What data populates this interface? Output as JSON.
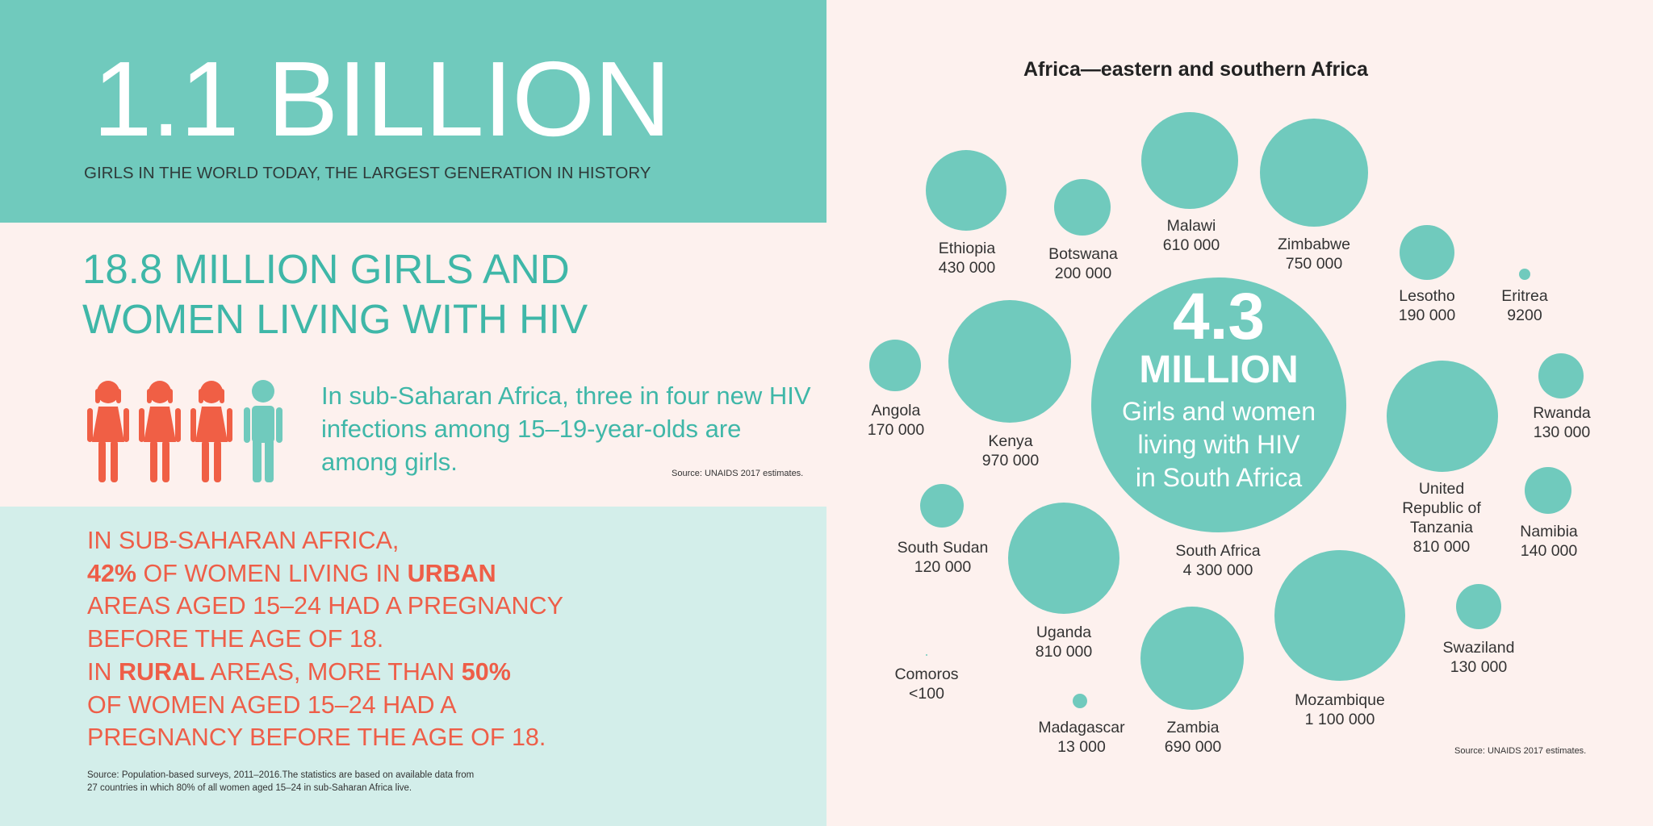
{
  "left": {
    "headline": "1.1 BILLION",
    "headline_sub": "GIRLS IN THE WORLD TODAY, THE LARGEST GENERATION IN HISTORY",
    "mid_heading": [
      "18.8 MILLION GIRLS AND",
      "WOMEN LIVING WITH HIV"
    ],
    "mid_text": "In sub-Saharan Africa, three in four new HIV infections among 15–19-year-olds are among girls.",
    "mid_source": "Source: UNAIDS 2017 estimates.",
    "figures": {
      "female_count": 3,
      "male_count": 1,
      "female_color": "#f05f45",
      "male_color": "#70cabd"
    },
    "bottom": {
      "line1": "IN SUB-SAHARAN AFRICA,",
      "line2_bold": "42%",
      "line2_a": " OF WOMEN LIVING IN ",
      "line2_bold2": "URBAN",
      "line3": "AREAS AGED 15–24 HAD A PREGNANCY",
      "line4": "BEFORE THE AGE OF 18.",
      "line5_a": "IN ",
      "line5_bold": "RURAL",
      "line5_b": " AREAS, MORE THAN ",
      "line5_bold2": "50%",
      "line6": "OF WOMEN AGED 15–24 HAD A",
      "line7": "PREGNANCY BEFORE THE AGE OF 18.",
      "source1": "Source: Population-based surveys, 2011–2016.The statistics are based on available data from",
      "source2": "27 countries in which 80% of all women aged 15–24 in sub-Saharan Africa live."
    },
    "colors": {
      "teal": "#70cabd",
      "teal_text": "#3fb7a8",
      "coral": "#ee5e48",
      "pale_teal": "#d3eeea",
      "cream": "#fdf1ee"
    }
  },
  "right": {
    "title": "Africa—eastern and southern Africa",
    "center": {
      "number": "4.3",
      "unit": "MILLION",
      "desc": [
        "Girls and women",
        "living with HIV",
        "in South Africa"
      ]
    },
    "source": "Source: UNAIDS 2017 estimates.",
    "countries": [
      {
        "name": "Ethiopia",
        "value": "430 000"
      },
      {
        "name": "Botswana",
        "value": "200 000"
      },
      {
        "name": "Malawi",
        "value": "610 000"
      },
      {
        "name": "Zimbabwe",
        "value": "750 000"
      },
      {
        "name": "Lesotho",
        "value": "190 000"
      },
      {
        "name": "Eritrea",
        "value": "9200"
      },
      {
        "name": "Angola",
        "value": "170 000"
      },
      {
        "name": "Kenya",
        "value": "970 000"
      },
      {
        "name": "Rwanda",
        "value": "130 000"
      },
      {
        "name": "United Republic of Tanzania",
        "value": "810 000"
      },
      {
        "name": "Namibia",
        "value": "140 000"
      },
      {
        "name": "South Sudan",
        "value": "120 000"
      },
      {
        "name": "South Africa",
        "value": "4 300 000"
      },
      {
        "name": "Uganda",
        "value": "810 000"
      },
      {
        "name": "Swaziland",
        "value": "130 000"
      },
      {
        "name": "Comoros",
        "value": "<100"
      },
      {
        "name": "Mozambique",
        "value": "1 100 000"
      },
      {
        "name": "Madagascar",
        "value": "13 000"
      },
      {
        "name": "Zambia",
        "value": "690 000"
      }
    ]
  }
}
